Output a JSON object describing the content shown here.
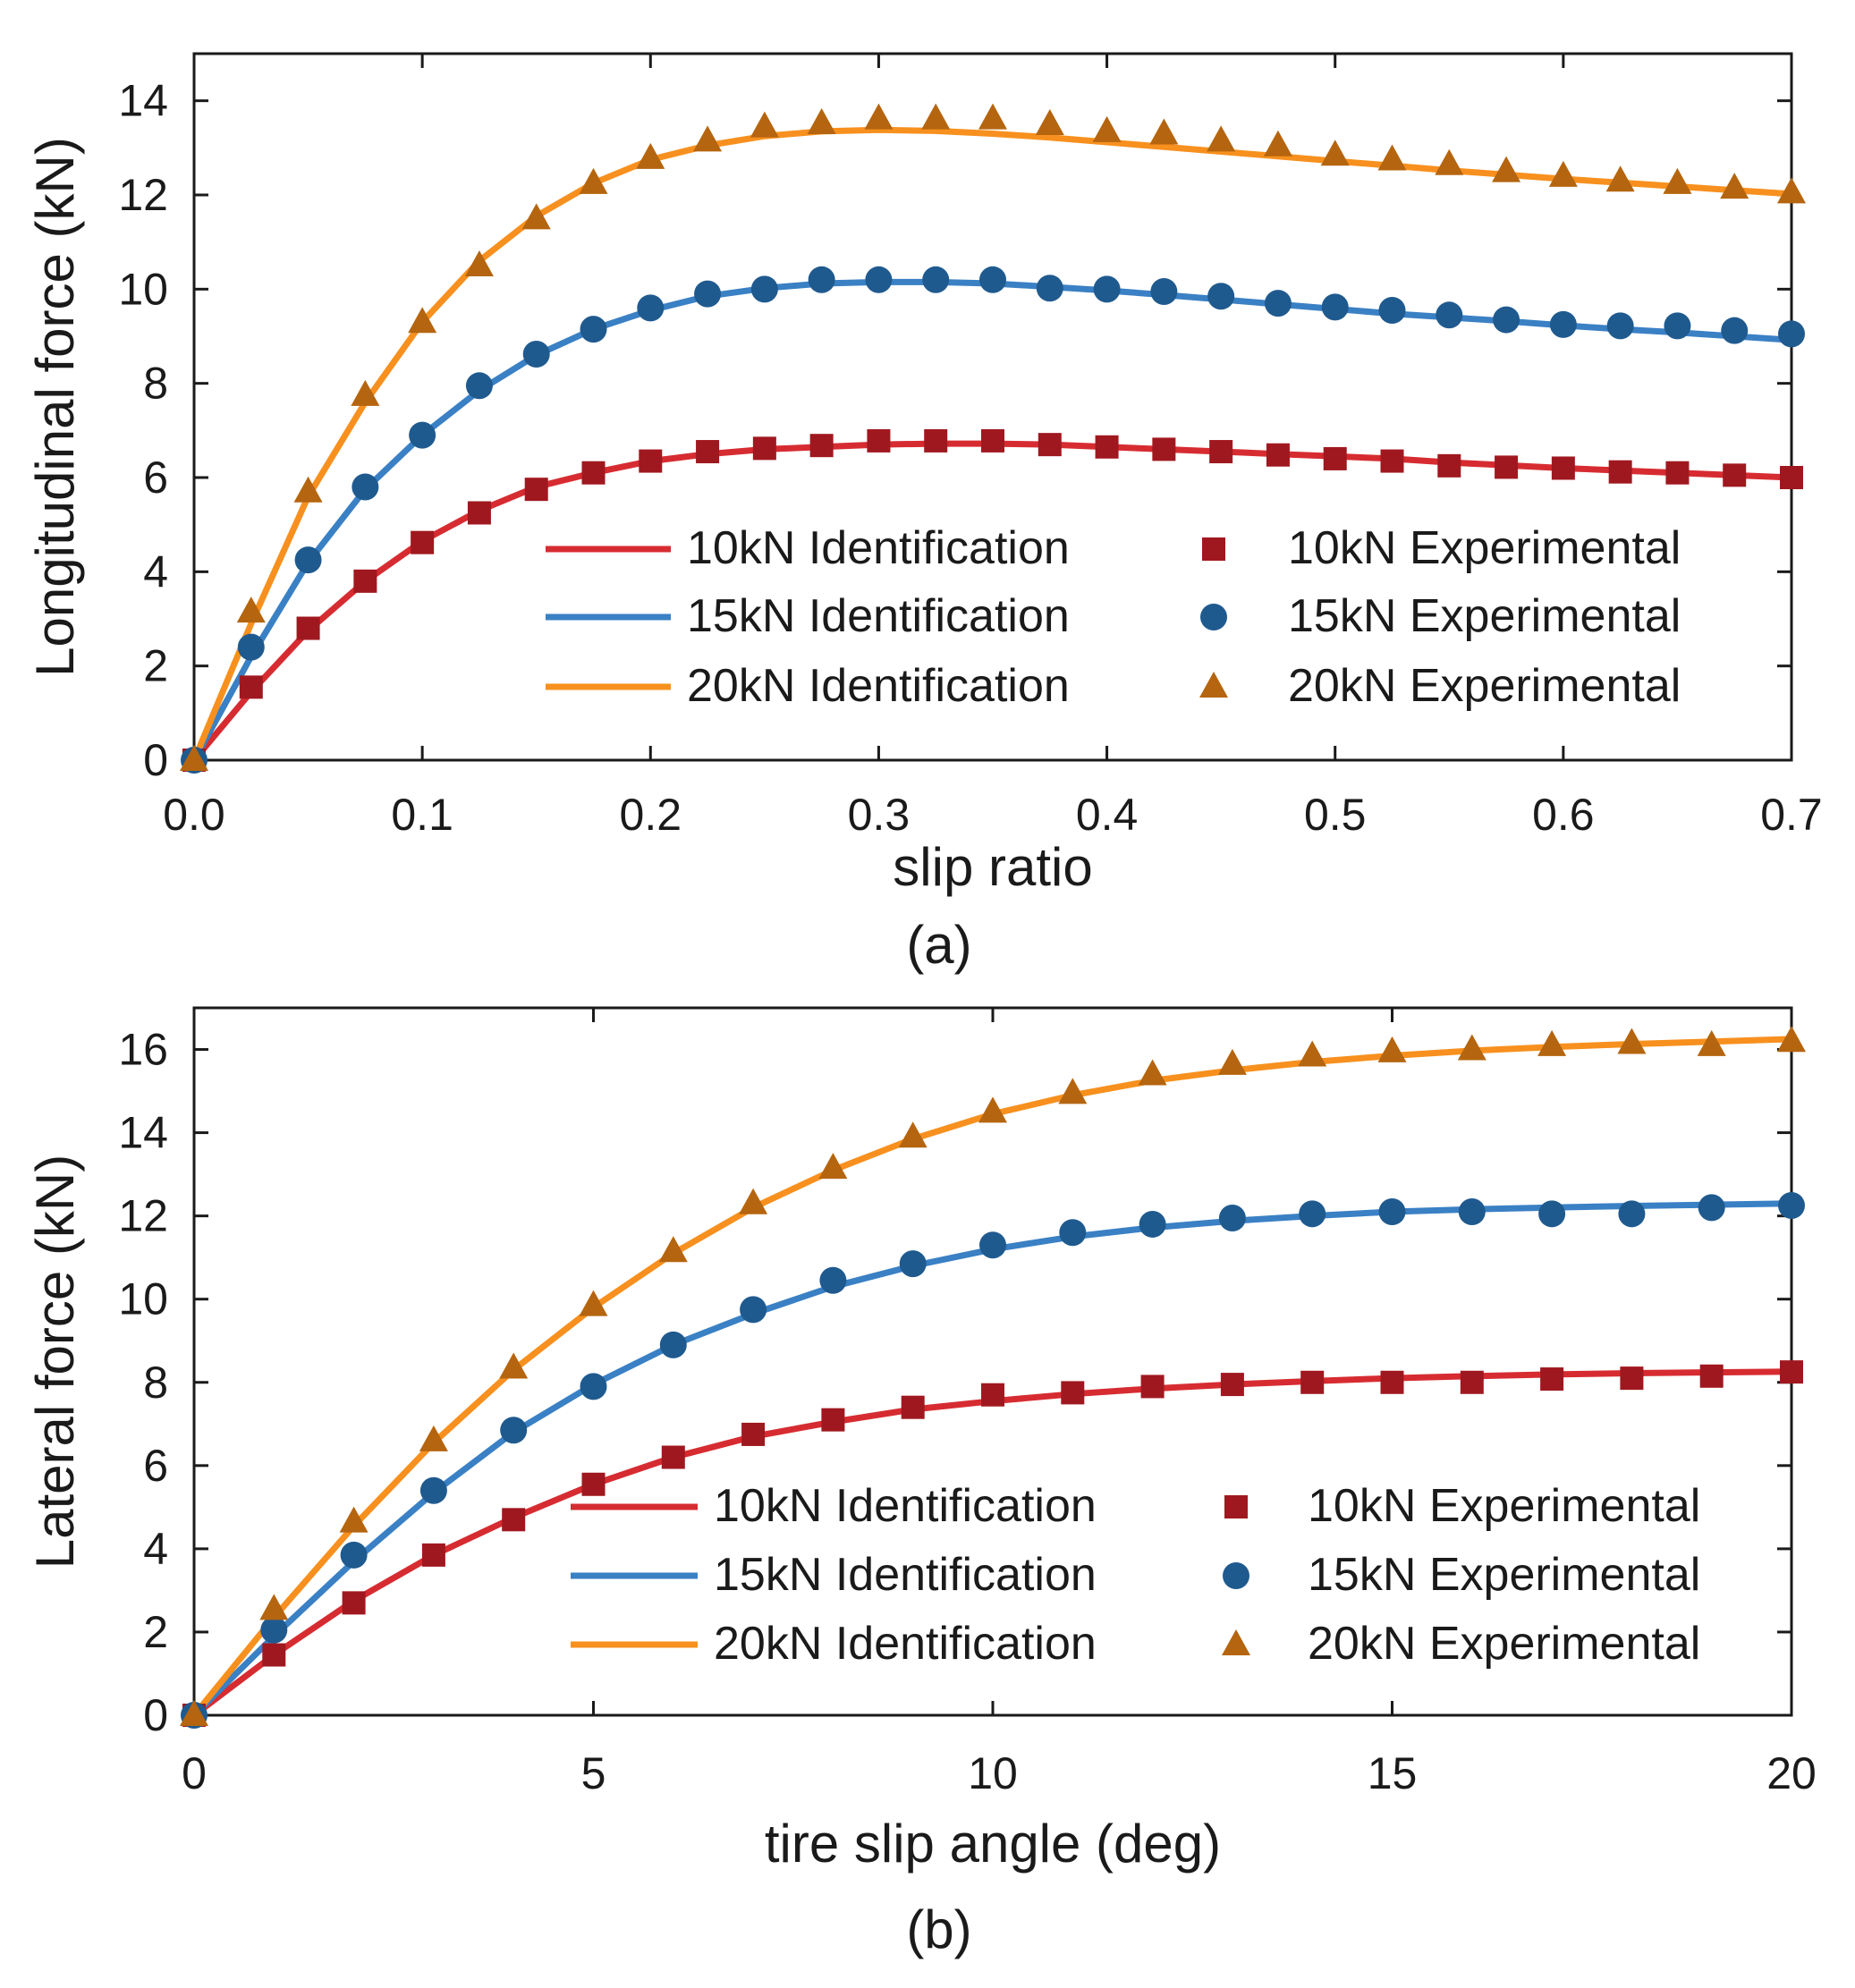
{
  "colors": {
    "c10": "#d62c31",
    "c15": "#3a80c4",
    "c20": "#f7901e",
    "m10": "#a0181f",
    "m15": "#1f5a8f",
    "m20": "#b5650f"
  },
  "chart_data": [
    {
      "type": "line",
      "caption": "(a)",
      "xlabel": "slip ratio",
      "ylabel": "Longitudinal force (kN)",
      "xlim": [
        0,
        0.7
      ],
      "ylim": [
        0,
        15
      ],
      "xticks": [
        0.0,
        0.1,
        0.2,
        0.3,
        0.4,
        0.5,
        0.6,
        0.7
      ],
      "xtick_labels": [
        "0.0",
        "0.1",
        "0.2",
        "0.3",
        "0.4",
        "0.5",
        "0.6",
        "0.7"
      ],
      "yticks": [
        0,
        2,
        4,
        6,
        8,
        10,
        12,
        14
      ],
      "ytick_labels": [
        "0",
        "2",
        "4",
        "6",
        "8",
        "10",
        "12",
        "14"
      ],
      "legend_position": "lower-right",
      "x": [
        0,
        0.025,
        0.05,
        0.075,
        0.1,
        0.125,
        0.15,
        0.175,
        0.2,
        0.225,
        0.25,
        0.275,
        0.3,
        0.325,
        0.35,
        0.375,
        0.4,
        0.425,
        0.45,
        0.475,
        0.5,
        0.525,
        0.55,
        0.575,
        0.6,
        0.625,
        0.65,
        0.675,
        0.7
      ],
      "series": [
        {
          "name": "10kN Identification",
          "kind": "line",
          "color": "c10",
          "values": [
            0,
            1.45,
            2.75,
            3.8,
            4.65,
            5.3,
            5.8,
            6.1,
            6.35,
            6.5,
            6.6,
            6.65,
            6.7,
            6.72,
            6.72,
            6.7,
            6.65,
            6.6,
            6.55,
            6.5,
            6.45,
            6.4,
            6.32,
            6.26,
            6.2,
            6.15,
            6.1,
            6.05,
            6.0
          ]
        },
        {
          "name": "15kN Identification",
          "kind": "line",
          "color": "c15",
          "values": [
            0,
            2.2,
            4.2,
            5.75,
            6.9,
            7.85,
            8.6,
            9.15,
            9.55,
            9.85,
            10.02,
            10.12,
            10.15,
            10.15,
            10.12,
            10.05,
            9.97,
            9.88,
            9.78,
            9.68,
            9.58,
            9.48,
            9.4,
            9.32,
            9.23,
            9.15,
            9.08,
            9.0,
            8.92
          ]
        },
        {
          "name": "20kN Identification",
          "kind": "line",
          "color": "c20",
          "values": [
            0,
            2.9,
            5.6,
            7.6,
            9.3,
            10.6,
            11.55,
            12.25,
            12.75,
            13.05,
            13.25,
            13.35,
            13.38,
            13.36,
            13.3,
            13.22,
            13.12,
            13.02,
            12.92,
            12.82,
            12.72,
            12.62,
            12.52,
            12.43,
            12.34,
            12.26,
            12.18,
            12.1,
            12.02
          ]
        },
        {
          "name": "10kN Experimental",
          "kind": "marker",
          "marker": "square",
          "color": "m10",
          "values": [
            0,
            1.55,
            2.8,
            3.8,
            4.62,
            5.25,
            5.75,
            6.1,
            6.35,
            6.55,
            6.62,
            6.68,
            6.78,
            6.78,
            6.78,
            6.7,
            6.65,
            6.6,
            6.55,
            6.48,
            6.4,
            6.35,
            6.25,
            6.22,
            6.2,
            6.12,
            6.1,
            6.05,
            6.0
          ]
        },
        {
          "name": "15kN Experimental",
          "kind": "marker",
          "marker": "circle",
          "color": "m15",
          "values": [
            0,
            2.4,
            4.25,
            5.8,
            6.9,
            7.95,
            8.62,
            9.15,
            9.6,
            9.9,
            10.0,
            10.2,
            10.2,
            10.2,
            10.2,
            10.02,
            10.0,
            9.95,
            9.85,
            9.7,
            9.62,
            9.55,
            9.45,
            9.35,
            9.25,
            9.22,
            9.22,
            9.12,
            9.05
          ]
        },
        {
          "name": "20kN Experimental",
          "kind": "marker",
          "marker": "triangle",
          "color": "m20",
          "values": [
            0,
            3.15,
            5.7,
            7.75,
            9.3,
            10.5,
            11.5,
            12.25,
            12.78,
            13.15,
            13.45,
            13.52,
            13.62,
            13.62,
            13.62,
            13.5,
            13.35,
            13.3,
            13.15,
            13.05,
            12.85,
            12.75,
            12.65,
            12.5,
            12.4,
            12.3,
            12.25,
            12.15,
            12.05
          ]
        }
      ],
      "legend": {
        "left_entries": [
          "10kN Identification",
          "15kN Identification",
          "20kN Identification"
        ],
        "right_entries": [
          "10kN Experimental",
          "15kN Experimental",
          "20kN Experimental"
        ]
      }
    },
    {
      "type": "line",
      "caption": "(b)",
      "xlabel": "tire slip angle  (deg)",
      "ylabel": "Lateral force (kN)",
      "xlim": [
        0,
        20
      ],
      "ylim": [
        0,
        17
      ],
      "xticks": [
        0,
        5,
        10,
        15,
        20
      ],
      "xtick_labels": [
        "0",
        "5",
        "10",
        "15",
        "20"
      ],
      "yticks": [
        0,
        2,
        4,
        6,
        8,
        10,
        12,
        14,
        16
      ],
      "ytick_labels": [
        "0",
        "2",
        "4",
        "6",
        "8",
        "10",
        "12",
        "14",
        "16"
      ],
      "legend_position": "lower-right",
      "x": [
        0,
        1,
        2,
        3,
        4,
        5,
        6,
        7,
        8,
        9,
        10,
        11,
        12,
        13,
        14,
        15,
        16,
        17,
        18,
        19,
        20
      ],
      "series": [
        {
          "name": "10kN Identification",
          "kind": "line",
          "color": "c10",
          "values": [
            0,
            1.45,
            2.75,
            3.85,
            4.75,
            5.55,
            6.2,
            6.7,
            7.05,
            7.35,
            7.55,
            7.72,
            7.85,
            7.95,
            8.03,
            8.1,
            8.15,
            8.19,
            8.22,
            8.24,
            8.26
          ]
        },
        {
          "name": "15kN Identification",
          "kind": "line",
          "color": "c15",
          "values": [
            0,
            1.9,
            3.7,
            5.35,
            6.8,
            7.95,
            8.9,
            9.65,
            10.3,
            10.8,
            11.2,
            11.5,
            11.72,
            11.88,
            12.0,
            12.1,
            12.16,
            12.2,
            12.24,
            12.27,
            12.3
          ]
        },
        {
          "name": "20kN Identification",
          "kind": "line",
          "color": "c20",
          "values": [
            0,
            2.35,
            4.55,
            6.55,
            8.3,
            9.8,
            11.1,
            12.2,
            13.1,
            13.85,
            14.45,
            14.9,
            15.25,
            15.5,
            15.7,
            15.85,
            15.97,
            16.06,
            16.13,
            16.19,
            16.25
          ]
        },
        {
          "name": "10kN Experimental",
          "kind": "marker",
          "marker": "square",
          "color": "m10",
          "values": [
            0,
            1.45,
            2.7,
            3.85,
            4.7,
            5.55,
            6.2,
            6.75,
            7.1,
            7.4,
            7.7,
            7.75,
            7.9,
            7.95,
            8.0,
            8.0,
            8.0,
            8.08,
            8.1,
            8.15,
            8.25
          ]
        },
        {
          "name": "15kN Experimental",
          "kind": "marker",
          "marker": "circle",
          "color": "m15",
          "values": [
            0,
            2.05,
            3.85,
            5.4,
            6.85,
            7.9,
            8.9,
            9.75,
            10.45,
            10.85,
            11.3,
            11.6,
            11.8,
            11.95,
            12.05,
            12.1,
            12.1,
            12.05,
            12.05,
            12.2,
            12.25
          ]
        },
        {
          "name": "20kN Experimental",
          "kind": "marker",
          "marker": "triangle",
          "color": "m20",
          "values": [
            0,
            2.55,
            4.65,
            6.6,
            8.35,
            9.85,
            11.15,
            12.3,
            13.15,
            13.9,
            14.5,
            14.95,
            15.4,
            15.65,
            15.85,
            15.95,
            16.0,
            16.1,
            16.15,
            16.1,
            16.2
          ]
        }
      ],
      "legend": {
        "left_entries": [
          "10kN Identification",
          "15kN Identification",
          "20kN Identification"
        ],
        "right_entries": [
          "10kN Experimental",
          "15kN Experimental",
          "20kN Experimental"
        ]
      }
    }
  ]
}
